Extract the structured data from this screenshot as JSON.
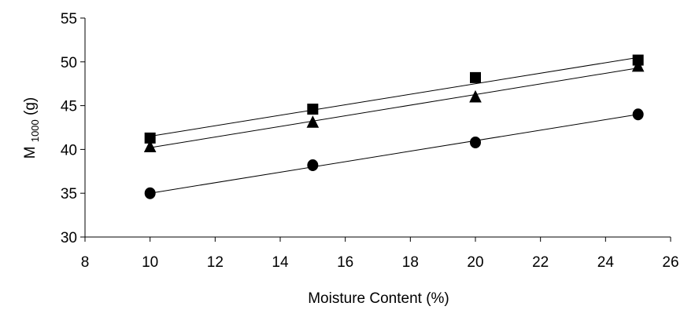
{
  "chart_data": {
    "type": "scatter",
    "title": "",
    "xlabel": "Moisture Content (%)",
    "ylabel": {
      "main": "M",
      "sub": "1000",
      "unit": "(g)"
    },
    "xlim": [
      8,
      26
    ],
    "ylim": [
      30,
      55
    ],
    "xticks": [
      8,
      10,
      12,
      14,
      16,
      18,
      20,
      22,
      24,
      26
    ],
    "yticks": [
      30,
      35,
      40,
      45,
      50,
      55
    ],
    "grid": false,
    "legend": "none",
    "series": [
      {
        "marker": "square",
        "x": [
          10,
          15,
          20,
          25
        ],
        "y": [
          41.3,
          44.6,
          48.2,
          50.2
        ],
        "trendline": {
          "x": [
            10,
            25
          ],
          "y": [
            41.5,
            50.5
          ]
        }
      },
      {
        "marker": "triangle",
        "x": [
          10,
          15,
          20,
          25
        ],
        "y": [
          40.3,
          43.1,
          46.0,
          49.5
        ],
        "trendline": {
          "x": [
            10,
            25
          ],
          "y": [
            40.2,
            49.3
          ]
        }
      },
      {
        "marker": "circle",
        "x": [
          10,
          15,
          20,
          25
        ],
        "y": [
          35.0,
          38.2,
          40.8,
          44.0
        ],
        "trendline": {
          "x": [
            10,
            25
          ],
          "y": [
            35.0,
            44.0
          ]
        }
      }
    ]
  }
}
